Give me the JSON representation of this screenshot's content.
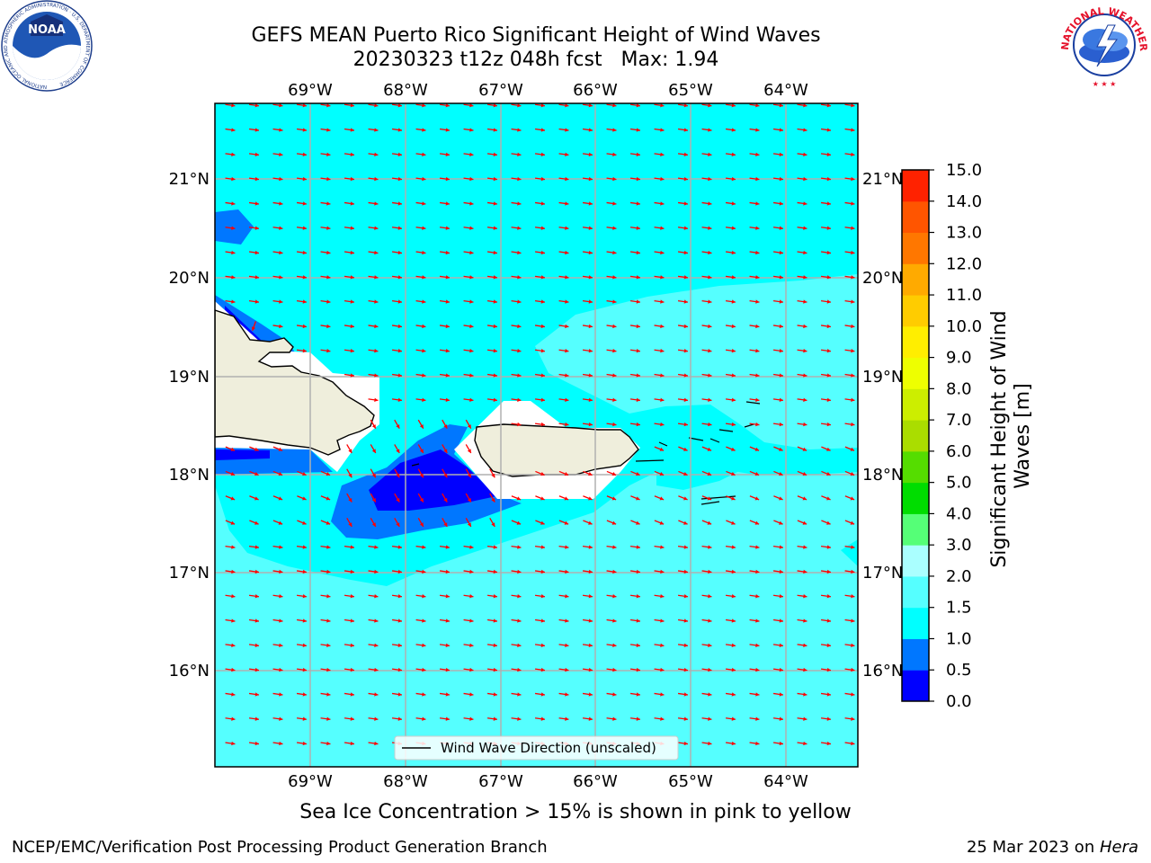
{
  "header": {
    "title_line1": "GEFS MEAN Puerto Rico Significant Height of Wind Waves",
    "title_line2": "20230323 t12z 048h fcst   Max: 1.94"
  },
  "logos": {
    "noaa_text": "NOAA",
    "noaa_ring_text": "NATIONAL OCEANIC AND ATMOSPHERIC ADMINISTRATION · U.S. DEPARTMENT OF COMMERCE",
    "nws_ring_text": "NATIONAL WEATHER SERVICE"
  },
  "map": {
    "lon_labels": [
      "69°W",
      "68°W",
      "67°W",
      "66°W",
      "65°W",
      "64°W"
    ],
    "lat_labels": [
      "21°N",
      "20°N",
      "19°N",
      "18°N",
      "17°N",
      "16°N"
    ],
    "legend_label": "Wind Wave Direction (unscaled)",
    "colors": {
      "land": "#efeedc",
      "sea_light": "#55ffff",
      "sea_cyan": "#00ffff",
      "sea_mid": "#0077ff",
      "sea_deep": "#0000ff",
      "arrow": "#ff0000",
      "grid": "#b0b0b0"
    }
  },
  "colorbar": {
    "title": "Significant Height of Wind Waves [m]",
    "ticks": [
      "0.0",
      "0.5",
      "1.0",
      "1.5",
      "2.0",
      "3.0",
      "4.0",
      "5.0",
      "6.0",
      "7.0",
      "8.0",
      "9.0",
      "10.0",
      "11.0",
      "12.0",
      "13.0",
      "14.0",
      "15.0"
    ],
    "colors": [
      "#0000ff",
      "#0077ff",
      "#00ffff",
      "#55ffff",
      "#aaffff",
      "#55ff77",
      "#00dd00",
      "#55dd00",
      "#aadd00",
      "#ccee00",
      "#eeff00",
      "#ffee00",
      "#ffcc00",
      "#ffaa00",
      "#ff7700",
      "#ff5500",
      "#ff2200"
    ]
  },
  "footer": {
    "note": "Sea Ice Concentration > 15% is shown in pink to yellow",
    "left": "NCEP/EMC/Verification Post Processing Product Generation Branch",
    "date": "25 Mar 2023 on ",
    "machine": "Hera"
  }
}
